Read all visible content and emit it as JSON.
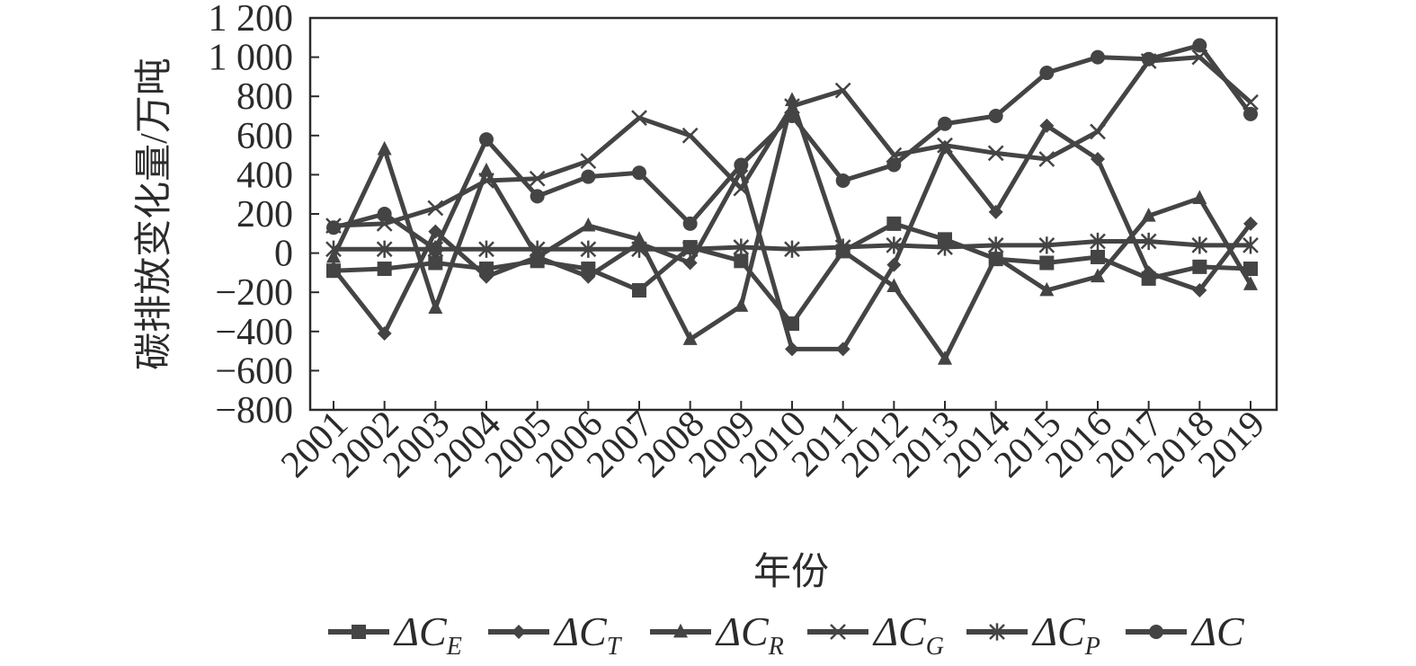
{
  "chart_data": {
    "type": "line",
    "ylabel": "碳排放变化量/万吨",
    "xlabel": "年份",
    "ylim": [
      -800,
      1200
    ],
    "yticks": [
      -800,
      -600,
      -400,
      -200,
      0,
      200,
      400,
      600,
      800,
      1000,
      1200
    ],
    "ytick_labels": [
      "−800",
      "−600",
      "−400",
      "−200",
      "0",
      "200",
      "400",
      "600",
      "800",
      "1 000",
      "1 200"
    ],
    "categories": [
      "2001",
      "2002",
      "2003",
      "2004",
      "2005",
      "2006",
      "2007",
      "2008",
      "2009",
      "2010",
      "2011",
      "2012",
      "2013",
      "2014",
      "2015",
      "2016",
      "2017",
      "2018",
      "2019"
    ],
    "grid": false,
    "legend_position": "bottom",
    "colors": {
      "line": "#444444",
      "text": "#2b2b2b"
    },
    "series": [
      {
        "name": "ΔC",
        "sub": "E",
        "marker": "square",
        "values": [
          -90,
          -80,
          -50,
          -80,
          -40,
          -80,
          -190,
          30,
          -40,
          -360,
          10,
          150,
          70,
          -30,
          -50,
          -20,
          -130,
          -70,
          -80
        ]
      },
      {
        "name": "ΔC",
        "sub": "T",
        "marker": "diamond",
        "values": [
          -80,
          -410,
          110,
          -120,
          -20,
          -120,
          50,
          -50,
          420,
          -490,
          -490,
          -60,
          540,
          210,
          650,
          480,
          -100,
          -190,
          150
        ]
      },
      {
        "name": "ΔC",
        "sub": "R",
        "marker": "triangle",
        "values": [
          -20,
          530,
          -280,
          420,
          -20,
          140,
          70,
          -440,
          -270,
          780,
          10,
          -170,
          -540,
          -20,
          -190,
          -120,
          190,
          280,
          -160
        ]
      },
      {
        "name": "ΔC",
        "sub": "G",
        "marker": "x",
        "values": [
          140,
          150,
          230,
          370,
          380,
          470,
          690,
          600,
          330,
          750,
          830,
          500,
          550,
          510,
          480,
          620,
          980,
          1000,
          770
        ]
      },
      {
        "name": "ΔC",
        "sub": "P",
        "marker": "star",
        "values": [
          20,
          20,
          20,
          20,
          20,
          20,
          20,
          20,
          30,
          20,
          30,
          40,
          30,
          40,
          40,
          60,
          60,
          40,
          40
        ]
      },
      {
        "name": "ΔC",
        "sub": "",
        "marker": "circle",
        "values": [
          130,
          200,
          20,
          580,
          290,
          390,
          410,
          150,
          450,
          700,
          370,
          450,
          660,
          700,
          920,
          1000,
          990,
          1060,
          710
        ]
      }
    ]
  }
}
